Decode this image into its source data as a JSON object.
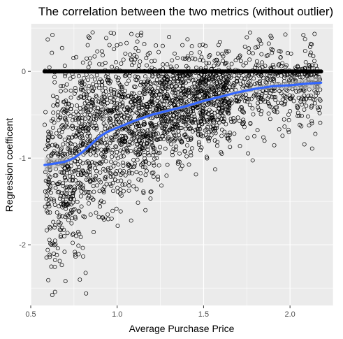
{
  "chart_data": {
    "type": "scatter",
    "title": "The correlation between the two metrics (without outlier)",
    "xlabel": "Average Purchase Price",
    "ylabel": "Regression coefficent",
    "xlim": [
      0.5,
      2.25
    ],
    "ylim": [
      -2.7,
      0.55
    ],
    "x_ticks": [
      0.5,
      1.0,
      1.5,
      2.0
    ],
    "x_tick_labels": [
      "0.5",
      "1.0",
      "1.5",
      "2.0"
    ],
    "y_ticks": [
      0,
      -1,
      -2
    ],
    "y_tick_labels": [
      "0",
      "-1",
      "-2"
    ],
    "grid": true,
    "legend": "none",
    "point_style": "open circle",
    "panel_color": "#ebebeb",
    "grid_color": "#ffffff",
    "point_color": "#000000",
    "smooth_color": "#3366ff",
    "ribbon_color": "#c6c6c6",
    "x_range_points": [
      0.58,
      2.18
    ],
    "zero_row": {
      "y": 0,
      "x_range": [
        0.58,
        2.18
      ],
      "description_count": 220
    },
    "smooth_line": {
      "x": [
        0.58,
        0.65,
        0.7,
        0.75,
        0.8,
        0.85,
        0.9,
        0.95,
        1.0,
        1.1,
        1.2,
        1.3,
        1.4,
        1.5,
        1.6,
        1.7,
        1.8,
        1.9,
        2.0,
        2.1,
        2.18
      ],
      "y": [
        -1.08,
        -1.06,
        -1.04,
        -1.0,
        -0.93,
        -0.84,
        -0.75,
        -0.69,
        -0.65,
        -0.57,
        -0.5,
        -0.45,
        -0.4,
        -0.34,
        -0.29,
        -0.24,
        -0.2,
        -0.17,
        -0.16,
        -0.14,
        -0.13
      ],
      "ci_halfwidth": [
        0.09,
        0.06,
        0.04,
        0.03,
        0.025,
        0.02,
        0.02,
        0.02,
        0.02,
        0.02,
        0.02,
        0.02,
        0.02,
        0.02,
        0.02,
        0.025,
        0.03,
        0.03,
        0.04,
        0.06,
        0.08
      ]
    },
    "scatter_seed": 20240517,
    "scatter_count": 2600
  }
}
